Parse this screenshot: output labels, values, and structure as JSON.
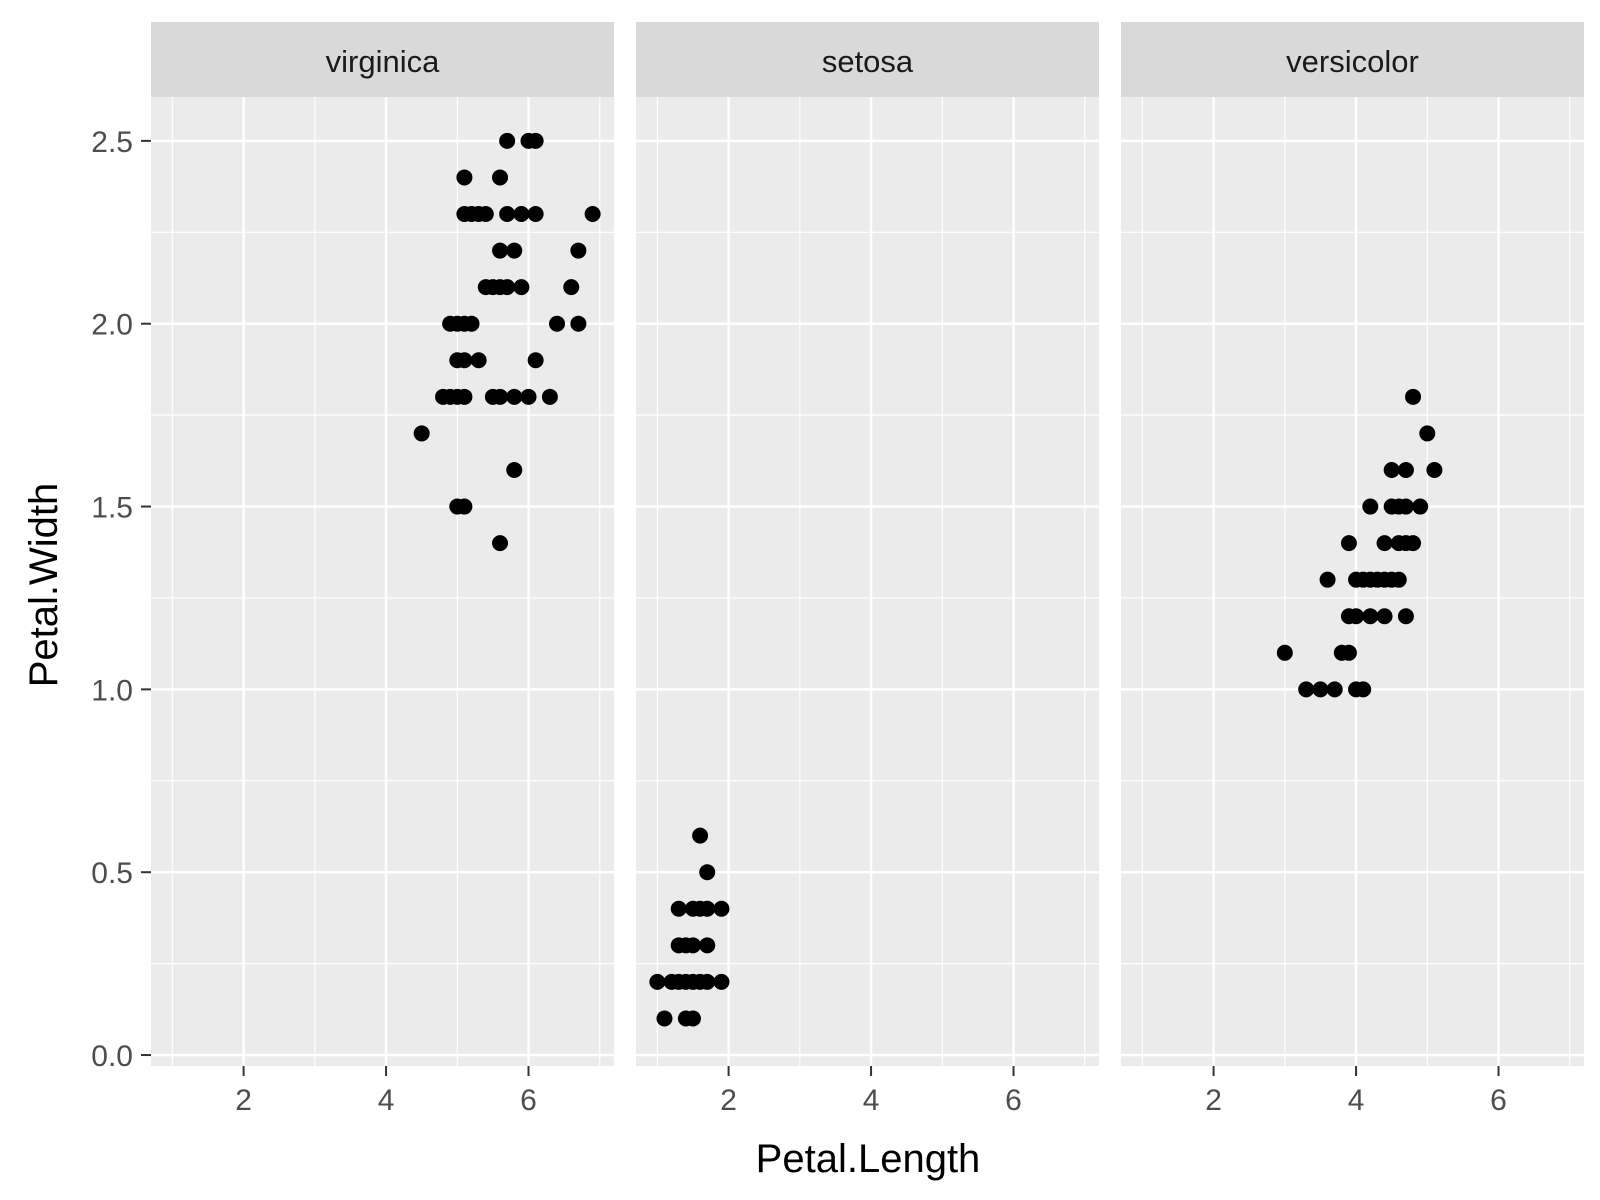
{
  "chart_data": {
    "type": "scatter",
    "facet_by": "Species",
    "xlabel": "Petal.Length",
    "ylabel": "Petal.Width",
    "xlim": [
      0.7,
      7.2
    ],
    "ylim": [
      -0.03,
      2.62
    ],
    "x_ticks": [
      2,
      4,
      6
    ],
    "x_tick_labels": [
      "2",
      "4",
      "6"
    ],
    "y_ticks": [
      0.0,
      0.5,
      1.0,
      1.5,
      2.0,
      2.5
    ],
    "y_tick_labels": [
      "0.0",
      "0.5",
      "1.0",
      "1.5",
      "2.0",
      "2.5"
    ],
    "grid": true,
    "point_color": "#000000",
    "panel_background": "#ebebeb",
    "strip_background": "#d9d9d9",
    "facets": [
      {
        "label": "virginica",
        "points": [
          [
            4.5,
            1.7
          ],
          [
            4.8,
            1.8
          ],
          [
            4.9,
            1.8
          ],
          [
            5.0,
            1.8
          ],
          [
            5.1,
            1.8
          ],
          [
            5.5,
            1.8
          ],
          [
            5.6,
            1.8
          ],
          [
            5.8,
            1.8
          ],
          [
            6.0,
            1.8
          ],
          [
            6.3,
            1.8
          ],
          [
            5.0,
            1.5
          ],
          [
            5.1,
            1.5
          ],
          [
            5.6,
            1.4
          ],
          [
            5.8,
            1.6
          ],
          [
            5.0,
            1.9
          ],
          [
            5.1,
            1.9
          ],
          [
            5.3,
            1.9
          ],
          [
            6.1,
            1.9
          ],
          [
            4.9,
            2.0
          ],
          [
            5.0,
            2.0
          ],
          [
            5.1,
            2.0
          ],
          [
            5.2,
            2.0
          ],
          [
            6.4,
            2.0
          ],
          [
            6.7,
            2.0
          ],
          [
            5.4,
            2.1
          ],
          [
            5.5,
            2.1
          ],
          [
            5.6,
            2.1
          ],
          [
            5.7,
            2.1
          ],
          [
            5.9,
            2.1
          ],
          [
            6.6,
            2.1
          ],
          [
            5.6,
            2.2
          ],
          [
            5.8,
            2.2
          ],
          [
            6.7,
            2.2
          ],
          [
            5.1,
            2.3
          ],
          [
            5.2,
            2.3
          ],
          [
            5.3,
            2.3
          ],
          [
            5.4,
            2.3
          ],
          [
            5.7,
            2.3
          ],
          [
            5.9,
            2.3
          ],
          [
            6.1,
            2.3
          ],
          [
            6.9,
            2.3
          ],
          [
            5.1,
            2.4
          ],
          [
            5.6,
            2.4
          ],
          [
            5.7,
            2.5
          ],
          [
            6.0,
            2.5
          ],
          [
            6.1,
            2.5
          ]
        ]
      },
      {
        "label": "setosa",
        "points": [
          [
            1.1,
            0.1
          ],
          [
            1.4,
            0.1
          ],
          [
            1.5,
            0.1
          ],
          [
            1.0,
            0.2
          ],
          [
            1.2,
            0.2
          ],
          [
            1.3,
            0.2
          ],
          [
            1.4,
            0.2
          ],
          [
            1.5,
            0.2
          ],
          [
            1.6,
            0.2
          ],
          [
            1.7,
            0.2
          ],
          [
            1.9,
            0.2
          ],
          [
            1.3,
            0.3
          ],
          [
            1.4,
            0.3
          ],
          [
            1.5,
            0.3
          ],
          [
            1.7,
            0.3
          ],
          [
            1.3,
            0.4
          ],
          [
            1.5,
            0.4
          ],
          [
            1.6,
            0.4
          ],
          [
            1.7,
            0.4
          ],
          [
            1.9,
            0.4
          ],
          [
            1.7,
            0.5
          ],
          [
            1.6,
            0.6
          ]
        ]
      },
      {
        "label": "versicolor",
        "points": [
          [
            3.3,
            1.0
          ],
          [
            3.5,
            1.0
          ],
          [
            3.7,
            1.0
          ],
          [
            4.0,
            1.0
          ],
          [
            4.1,
            1.0
          ],
          [
            3.0,
            1.1
          ],
          [
            3.8,
            1.1
          ],
          [
            3.9,
            1.1
          ],
          [
            3.9,
            1.2
          ],
          [
            4.0,
            1.2
          ],
          [
            4.2,
            1.2
          ],
          [
            4.4,
            1.2
          ],
          [
            4.7,
            1.2
          ],
          [
            3.6,
            1.3
          ],
          [
            4.0,
            1.3
          ],
          [
            4.1,
            1.3
          ],
          [
            4.2,
            1.3
          ],
          [
            4.3,
            1.3
          ],
          [
            4.4,
            1.3
          ],
          [
            4.5,
            1.3
          ],
          [
            4.6,
            1.3
          ],
          [
            3.9,
            1.4
          ],
          [
            4.4,
            1.4
          ],
          [
            4.6,
            1.4
          ],
          [
            4.7,
            1.4
          ],
          [
            4.8,
            1.4
          ],
          [
            4.2,
            1.5
          ],
          [
            4.5,
            1.5
          ],
          [
            4.6,
            1.5
          ],
          [
            4.7,
            1.5
          ],
          [
            4.9,
            1.5
          ],
          [
            4.5,
            1.6
          ],
          [
            4.7,
            1.6
          ],
          [
            5.1,
            1.6
          ],
          [
            5.0,
            1.7
          ],
          [
            4.8,
            1.8
          ]
        ]
      }
    ]
  }
}
